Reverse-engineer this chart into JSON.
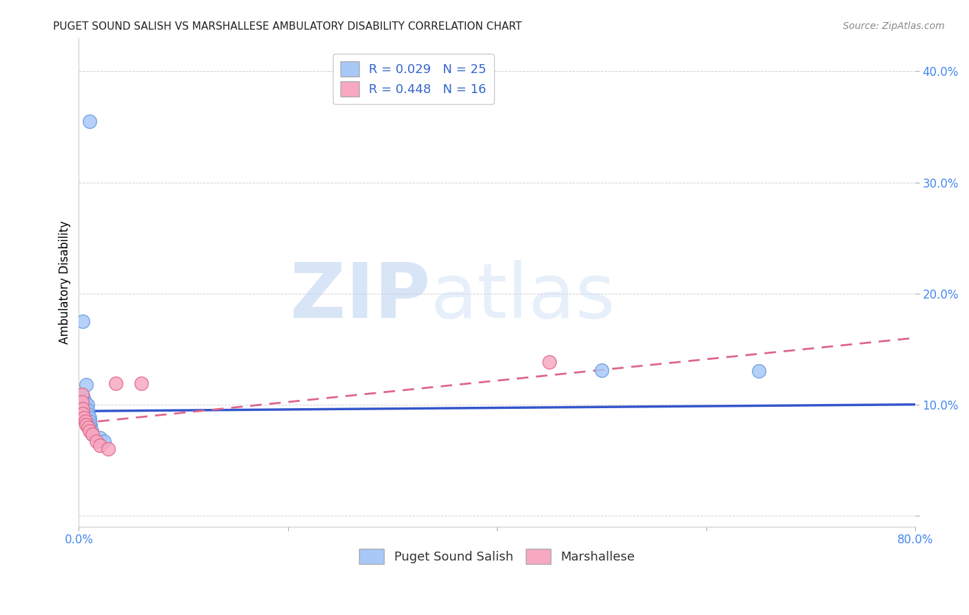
{
  "title": "PUGET SOUND SALISH VS MARSHALLESE AMBULATORY DISABILITY CORRELATION CHART",
  "source": "Source: ZipAtlas.com",
  "ylabel": "Ambulatory Disability",
  "xlim": [
    0.0,
    0.8
  ],
  "ylim": [
    -0.01,
    0.43
  ],
  "watermark_zip": "ZIP",
  "watermark_atlas": "atlas",
  "salish_color": "#a8c8f8",
  "salish_edge": "#6699dd",
  "marshallese_color": "#f8a8c0",
  "marshallese_edge": "#dd6688",
  "salish_line_color": "#3355cc",
  "marshallese_line_color": "#dd6688",
  "salish_points": [
    [
      0.01,
      0.355
    ],
    [
      0.004,
      0.175
    ],
    [
      0.007,
      0.118
    ],
    [
      0.004,
      0.108
    ],
    [
      0.005,
      0.104
    ],
    [
      0.006,
      0.101
    ],
    [
      0.006,
      0.098
    ],
    [
      0.006,
      0.095
    ],
    [
      0.006,
      0.092
    ],
    [
      0.007,
      0.089
    ],
    [
      0.007,
      0.086
    ],
    [
      0.007,
      0.083
    ],
    [
      0.008,
      0.1
    ],
    [
      0.008,
      0.095
    ],
    [
      0.009,
      0.091
    ],
    [
      0.01,
      0.088
    ],
    [
      0.01,
      0.085
    ],
    [
      0.011,
      0.082
    ],
    [
      0.011,
      0.079
    ],
    [
      0.012,
      0.076
    ],
    [
      0.013,
      0.073
    ],
    [
      0.02,
      0.07
    ],
    [
      0.024,
      0.067
    ],
    [
      0.5,
      0.131
    ],
    [
      0.65,
      0.13
    ]
  ],
  "marshallese_points": [
    [
      0.003,
      0.109
    ],
    [
      0.003,
      0.102
    ],
    [
      0.004,
      0.096
    ],
    [
      0.004,
      0.092
    ],
    [
      0.005,
      0.088
    ],
    [
      0.006,
      0.085
    ],
    [
      0.007,
      0.082
    ],
    [
      0.009,
      0.079
    ],
    [
      0.01,
      0.076
    ],
    [
      0.013,
      0.073
    ],
    [
      0.017,
      0.067
    ],
    [
      0.02,
      0.063
    ],
    [
      0.028,
      0.06
    ],
    [
      0.035,
      0.119
    ],
    [
      0.06,
      0.119
    ],
    [
      0.45,
      0.138
    ]
  ],
  "salish_trend_x": [
    0.0,
    0.8
  ],
  "salish_trend_y": [
    0.094,
    0.1
  ],
  "marshallese_trend_x": [
    0.0,
    0.8
  ],
  "marshallese_trend_y": [
    0.083,
    0.16
  ]
}
